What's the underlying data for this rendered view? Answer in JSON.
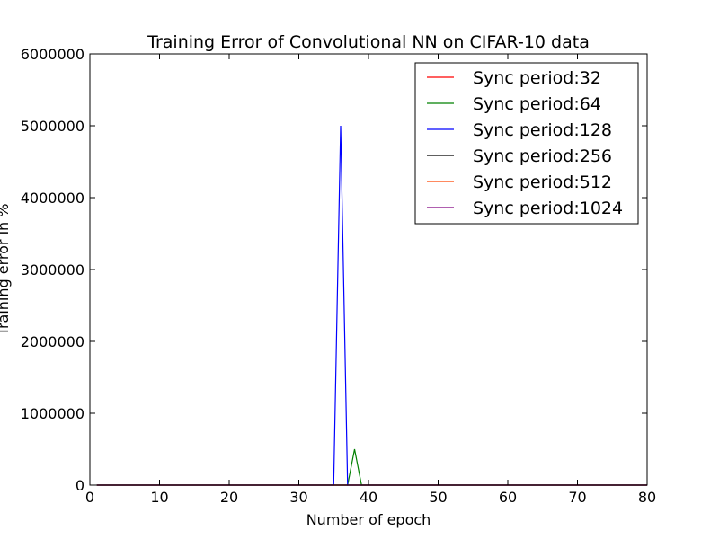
{
  "chart_data": {
    "type": "line",
    "title": "Training Error of Convolutional NN on CIFAR-10 data",
    "xlabel": "Number of epoch",
    "ylabel": "Training error in %",
    "xlim": [
      0,
      80
    ],
    "ylim": [
      0,
      6000000
    ],
    "xticks": [
      0,
      10,
      20,
      30,
      40,
      50,
      60,
      70,
      80
    ],
    "yticks": [
      0,
      1000000,
      2000000,
      3000000,
      4000000,
      5000000,
      6000000
    ],
    "grid": false,
    "legend_position": "top-right",
    "series": [
      {
        "name": "Sync period:32",
        "color": "#ff0000",
        "x": [
          1,
          80
        ],
        "y": [
          0,
          0
        ]
      },
      {
        "name": "Sync period:64",
        "color": "#008000",
        "x": [
          1,
          36,
          37,
          38,
          39,
          80
        ],
        "y": [
          0,
          0,
          0,
          500000,
          0,
          0
        ]
      },
      {
        "name": "Sync period:128",
        "color": "#0000ff",
        "x": [
          1,
          35,
          36,
          37,
          80
        ],
        "y": [
          0,
          0,
          5000000,
          0,
          0
        ]
      },
      {
        "name": "Sync period:256",
        "color": "#000000",
        "x": [
          1,
          80
        ],
        "y": [
          0,
          0
        ]
      },
      {
        "name": "Sync period:512",
        "color": "#ff4500",
        "x": [
          1,
          80
        ],
        "y": [
          0,
          0
        ]
      },
      {
        "name": "Sync period:1024",
        "color": "#800080",
        "x": [
          1,
          80
        ],
        "y": [
          0,
          0
        ]
      }
    ]
  }
}
